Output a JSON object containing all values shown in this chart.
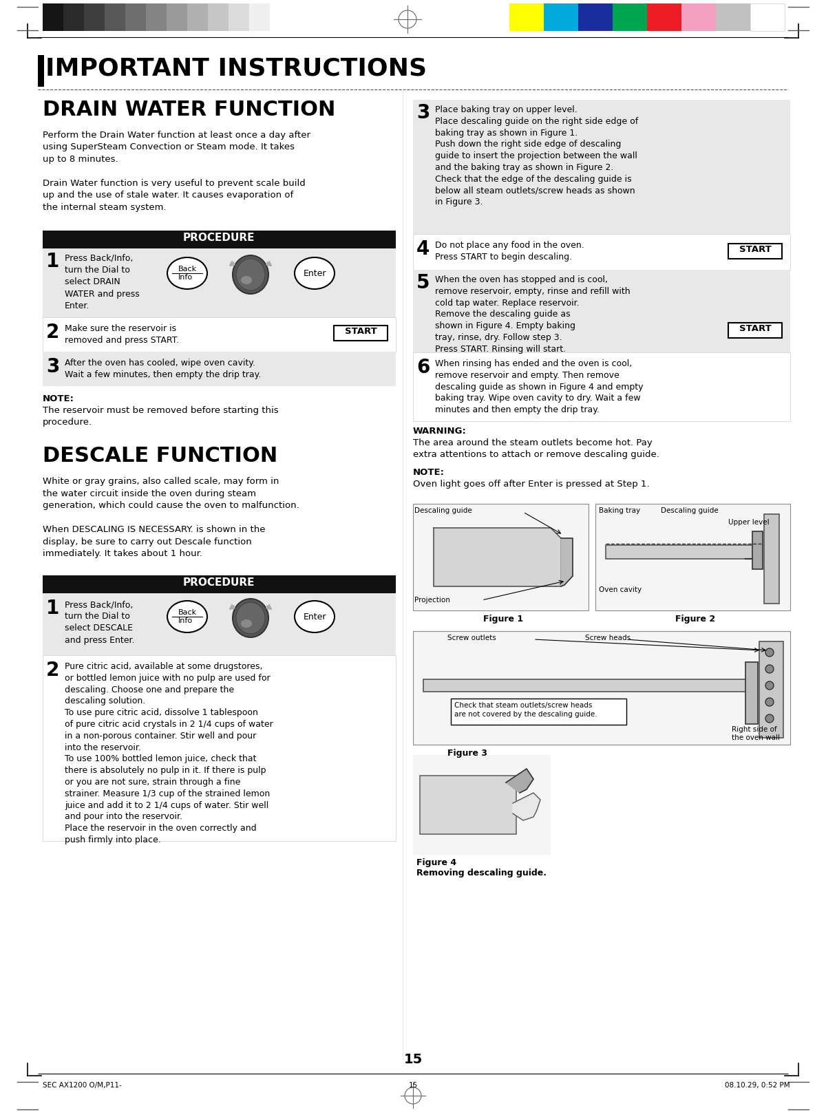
{
  "page_number": "15",
  "footer_left": "SEC AX1200 O/M,P11-",
  "footer_center": "15",
  "footer_right": "08.10.29, 0:52 PM",
  "bg_color": "#ffffff",
  "procedure_bar_color": "#111111",
  "procedure_text_color": "#ffffff",
  "step_bg_color_alt": "#e8e8e8",
  "step_bg_color_white": "#ffffff",
  "grayscale_colors": [
    "#141414",
    "#2a2a2a",
    "#3e3e3e",
    "#585858",
    "#6e6e6e",
    "#848484",
    "#9a9a9a",
    "#b0b0b0",
    "#c6c6c6",
    "#dcdcdc",
    "#f0f0f0"
  ],
  "color_swatches": [
    "#ffff00",
    "#00aadd",
    "#1a2e9e",
    "#00a550",
    "#ee1c24",
    "#f4a0c0",
    "#c0c0c0"
  ]
}
